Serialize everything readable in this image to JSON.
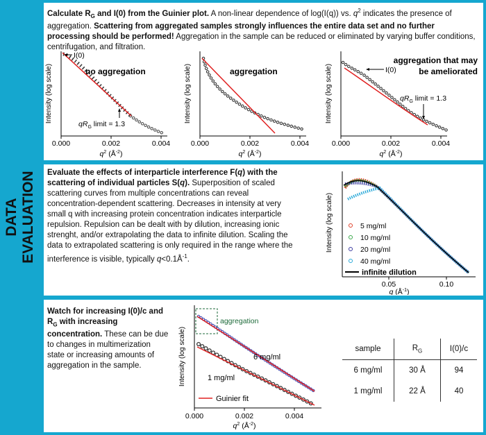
{
  "sidebar": {
    "line1": "DATA",
    "line2": "EVALUATION"
  },
  "guinier": {
    "b1": "Calculate R",
    "sub1": "G",
    "b2": " and I(0) from the Guinier plot.",
    "t1": " A non-linear dependence of log(I(q)) vs. ",
    "qsq": "q",
    "sup2": "2",
    "t2": " indicates the presence of aggregation. ",
    "b3": "Scattering from aggregated samples strongly influences the entire data set and no further processing should be performed!",
    "t3": " Aggregation in the sample can be reduced or eliminated by varying buffer conditions, centrifugation, and filtration.",
    "plots": [
      {
        "label": "no aggregation",
        "i0_label": "I(0)",
        "qrg_label": "qR",
        "qrg_sub": "G",
        "qrg_rest": " limit = 1.3"
      },
      {
        "label": "aggregation"
      },
      {
        "label_line1": "aggregation that may",
        "label_line2": "be ameliorated",
        "i0_label": "I(0)",
        "qrg_label": "qR",
        "qrg_sub": "G",
        "qrg_rest": " limit = 1.3"
      }
    ],
    "ylabel": "Intensity (log scale)",
    "xlabel": "q",
    "xunit": " (Å",
    "xunit_sup": "-2",
    "xunit_end": ")",
    "xticks": [
      "0.000",
      "0.002",
      "0.004"
    ]
  },
  "interference": {
    "b1": "Evaluate the effects of interparticle interference F(",
    "b1q": "q",
    "b1b": ") with the scattering of individual particles S(",
    "b1q2": "q",
    "b1c": ").",
    "t1": " Superposition of scaled scattering curves from multiple concentrations can reveal concentration-dependent scattering. Decreases in intensity at very small q with increasing protein concentration indicates interparticle repulsion. Repulsion can be dealt with by dilution, increasing ionic strenght, and/or extrapolating the data to infinite dilution. Scaling the data to extrapolated scattering is only required in the range where the interference is visible, typically ",
    "t1q": "q",
    "t1end": "<0.1Å",
    "t1sup": "-1",
    "t1dot": ".",
    "ylabel": "Intensity (log scale)",
    "xlabel": "q",
    "xunit": " (Å",
    "xunit_sup": "-1",
    "xunit_end": ")",
    "xticks": [
      "0.05",
      "0.10"
    ],
    "legend": [
      {
        "label": "5 mg/ml",
        "color": "#e0402a"
      },
      {
        "label": "10 mg/ml",
        "color": "#3aa84a"
      },
      {
        "label": "20 mg/ml",
        "color": "#3b3aa0"
      },
      {
        "label": "40 mg/ml",
        "color": "#2aa9d9"
      },
      {
        "label": "infinite dilution",
        "color": "#000000"
      }
    ]
  },
  "concentration": {
    "b1": "Watch for increasing I(0)/c and R",
    "sub": "G",
    "b2": " with increasing concentration.",
    "t1": " These can be due to changes in multimerization state or increasing amounts of aggregation in the sample.",
    "box_label": "aggregation",
    "curve_hi": "6 mg/ml",
    "curve_lo": "1 mg/ml",
    "legend": "Guinier fit",
    "ylabel": "Intensity (log scale)",
    "xlabel": "q",
    "xunit": " (Å",
    "xunit_sup": "-2",
    "xunit_end": ")",
    "xticks": [
      "0.000",
      "0.002",
      "0.004"
    ],
    "table": {
      "headers": [
        "sample",
        "R",
        "I(0)/c"
      ],
      "rg_sub": "G",
      "rows": [
        [
          "6 mg/ml",
          "30 Å",
          "94"
        ],
        [
          "1 mg/ml",
          "22 Å",
          "40"
        ]
      ]
    }
  },
  "colors": {
    "frame": "#15a7cf",
    "fit": "#e02020",
    "points": "#222222"
  }
}
